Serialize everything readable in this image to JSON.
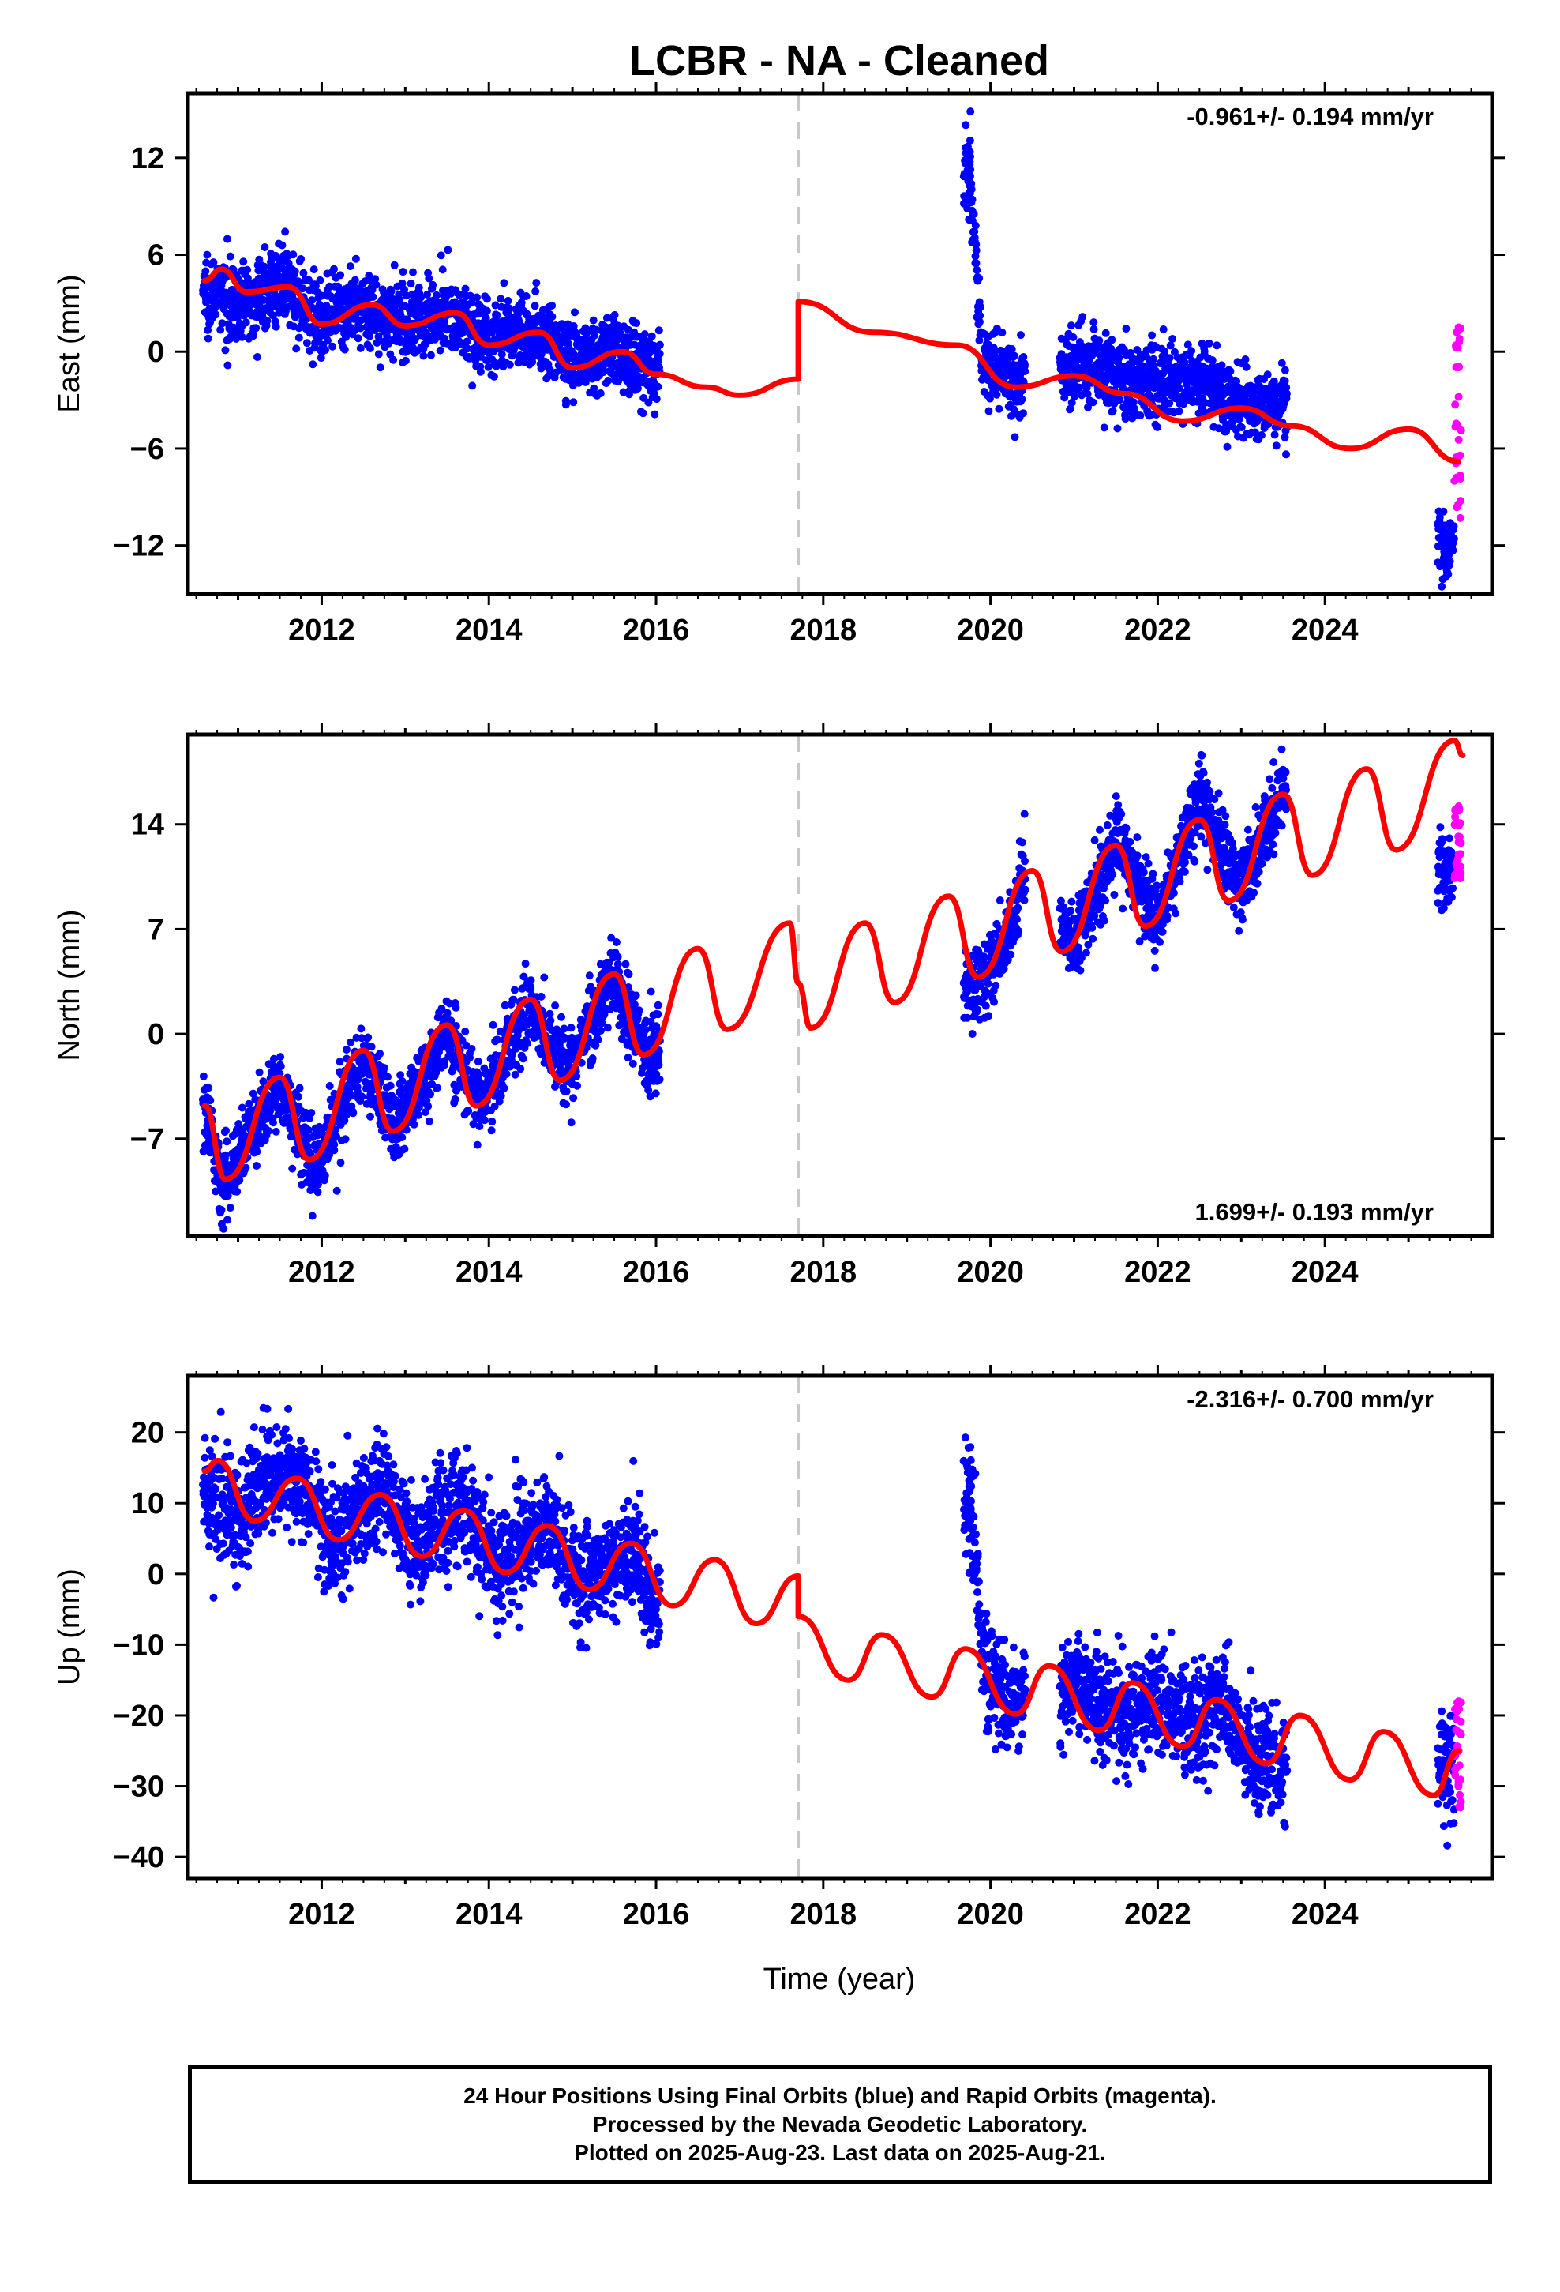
{
  "title": "LCBR  - NA - Cleaned",
  "xlabel": "Time (year)",
  "colors": {
    "final_orbits": "#0000ff",
    "rapid_orbits": "#ff00ff",
    "model_fit": "#ff0000",
    "equipment_change": "#c8c8c8"
  },
  "footer": {
    "line1": "24 Hour Positions Using Final Orbits (blue) and Rapid Orbits (magenta).",
    "line2": "Processed by the Nevada Geodetic Laboratory.",
    "line3": "Plotted on 2025-Aug-23. Last data on 2025-Aug-21."
  },
  "chart_data": [
    {
      "type": "scatter",
      "component": "east",
      "ylabel": "East (mm)",
      "rate_label": "-0.961+/- 0.194 mm/yr",
      "rate_label_position": "top-right",
      "xlim": [
        2010.4,
        2026.0
      ],
      "ylim": [
        -15,
        16
      ],
      "xticks": [
        2012,
        2014,
        2016,
        2018,
        2020,
        2022,
        2024
      ],
      "yticks": [
        -12,
        -6,
        0,
        6,
        12
      ],
      "step_year": 2017.7,
      "data_spans": [
        [
          2010.58,
          2016.05
        ],
        [
          2019.68,
          2020.42
        ],
        [
          2020.83,
          2023.55
        ],
        [
          2025.35,
          2025.55
        ]
      ],
      "rapid_span": [
        2025.55,
        2025.63
      ],
      "grid": false,
      "series": [
        {
          "type": "scatter",
          "color": "blue",
          "points": [
            [
              2010.6,
              3.8
            ],
            [
              2011.0,
              2.9
            ],
            [
              2011.5,
              4.3
            ],
            [
              2012.0,
              1.9
            ],
            [
              2012.5,
              2.8
            ],
            [
              2013.0,
              1.7
            ],
            [
              2013.5,
              2.7
            ],
            [
              2014.0,
              0.6
            ],
            [
              2014.5,
              1.4
            ],
            [
              2015.0,
              -0.4
            ],
            [
              2015.5,
              0.1
            ],
            [
              2016.0,
              -1.4
            ],
            [
              2019.75,
              11.5
            ],
            [
              2019.9,
              -0.6
            ],
            [
              2020.3,
              -1.9
            ],
            [
              2021.0,
              -0.7
            ],
            [
              2021.5,
              -1.4
            ],
            [
              2022.0,
              -2.0
            ],
            [
              2022.5,
              -1.8
            ],
            [
              2023.0,
              -3.4
            ],
            [
              2023.5,
              -3.4
            ],
            [
              2025.45,
              -12.2
            ]
          ]
        },
        {
          "type": "scatter",
          "color": "magenta",
          "points": [
            [
              2025.55,
              -8.0
            ],
            [
              2025.6,
              1.5
            ],
            [
              2025.6,
              -2.8
            ],
            [
              2025.62,
              -10.3
            ]
          ]
        },
        {
          "type": "line",
          "color": "red",
          "points": [
            [
              2010.6,
              4.4
            ],
            [
              2010.8,
              5.1
            ],
            [
              2011.1,
              3.7
            ],
            [
              2011.6,
              4.0
            ],
            [
              2012.0,
              1.7
            ],
            [
              2012.6,
              2.9
            ],
            [
              2013.0,
              1.6
            ],
            [
              2013.6,
              2.4
            ],
            [
              2014.0,
              0.4
            ],
            [
              2014.6,
              1.2
            ],
            [
              2015.0,
              -1.0
            ],
            [
              2015.6,
              0.0
            ],
            [
              2016.0,
              -1.4
            ],
            [
              2016.6,
              -2.2
            ],
            [
              2017.0,
              -2.7
            ],
            [
              2017.7,
              -1.7
            ],
            [
              2017.7,
              3.1
            ],
            [
              2018.6,
              1.2
            ],
            [
              2019.6,
              0.4
            ],
            [
              2020.3,
              -2.2
            ],
            [
              2021.0,
              -1.5
            ],
            [
              2021.6,
              -2.6
            ],
            [
              2022.3,
              -4.3
            ],
            [
              2023.0,
              -3.5
            ],
            [
              2023.6,
              -4.6
            ],
            [
              2024.3,
              -6.0
            ],
            [
              2025.0,
              -4.8
            ],
            [
              2025.6,
              -6.8
            ]
          ]
        }
      ]
    },
    {
      "type": "scatter",
      "component": "north",
      "ylabel": "North (mm)",
      "rate_label": "1.699+/- 0.193 mm/yr",
      "rate_label_position": "bottom-right",
      "xlim": [
        2010.4,
        2026.0
      ],
      "ylim": [
        -13.5,
        20
      ],
      "xticks": [
        2012,
        2014,
        2016,
        2018,
        2020,
        2022,
        2024
      ],
      "yticks": [
        -7,
        0,
        7,
        14
      ],
      "step_year": 2017.7,
      "data_spans": [
        [
          2010.58,
          2016.05
        ],
        [
          2019.68,
          2020.42
        ],
        [
          2020.83,
          2023.55
        ],
        [
          2025.35,
          2025.55
        ]
      ],
      "rapid_span": [
        2025.55,
        2025.63
      ],
      "grid": false,
      "series": [
        {
          "type": "scatter",
          "color": "blue",
          "points": [
            [
              2010.6,
              -4.5
            ],
            [
              2010.8,
              -9.8
            ],
            [
              2011.5,
              -3.3
            ],
            [
              2011.9,
              -9.0
            ],
            [
              2012.5,
              -1.6
            ],
            [
              2012.9,
              -6.2
            ],
            [
              2013.5,
              0.0
            ],
            [
              2013.9,
              -4.8
            ],
            [
              2014.5,
              2.2
            ],
            [
              2014.9,
              -2.7
            ],
            [
              2015.5,
              3.8
            ],
            [
              2015.9,
              -1.4
            ],
            [
              2019.8,
              3.2
            ],
            [
              2020.2,
              6.3
            ],
            [
              2020.4,
              10.5
            ],
            [
              2021.0,
              6.0
            ],
            [
              2021.5,
              12.8
            ],
            [
              2022.0,
              7.9
            ],
            [
              2022.5,
              15.8
            ],
            [
              2023.0,
              9.8
            ],
            [
              2023.5,
              16.1
            ],
            [
              2025.45,
              10.9
            ]
          ]
        },
        {
          "type": "scatter",
          "color": "magenta",
          "points": [
            [
              2025.6,
              15.2
            ],
            [
              2025.6,
              12.8
            ],
            [
              2025.62,
              10.4
            ]
          ]
        },
        {
          "type": "line",
          "color": "red",
          "points": [
            [
              2010.6,
              -4.8
            ],
            [
              2010.85,
              -9.7
            ],
            [
              2011.5,
              -2.9
            ],
            [
              2011.85,
              -8.4
            ],
            [
              2012.5,
              -1.1
            ],
            [
              2012.85,
              -6.5
            ],
            [
              2013.5,
              0.6
            ],
            [
              2013.85,
              -4.8
            ],
            [
              2014.5,
              2.3
            ],
            [
              2014.85,
              -3.1
            ],
            [
              2015.5,
              4.0
            ],
            [
              2015.85,
              -1.4
            ],
            [
              2016.5,
              5.7
            ],
            [
              2016.85,
              0.3
            ],
            [
              2017.6,
              7.4
            ],
            [
              2017.7,
              3.4
            ],
            [
              2017.85,
              0.4
            ],
            [
              2018.5,
              7.4
            ],
            [
              2018.85,
              2.1
            ],
            [
              2019.5,
              9.2
            ],
            [
              2019.85,
              3.8
            ],
            [
              2020.5,
              10.9
            ],
            [
              2020.85,
              5.5
            ],
            [
              2021.5,
              12.6
            ],
            [
              2021.85,
              7.2
            ],
            [
              2022.5,
              14.3
            ],
            [
              2022.85,
              8.9
            ],
            [
              2023.5,
              16.0
            ],
            [
              2023.85,
              10.6
            ],
            [
              2024.5,
              17.7
            ],
            [
              2024.85,
              12.3
            ],
            [
              2025.55,
              19.6
            ],
            [
              2025.65,
              18.6
            ]
          ]
        }
      ]
    },
    {
      "type": "scatter",
      "component": "up",
      "ylabel": "Up (mm)",
      "rate_label": "-2.316+/- 0.700 mm/yr",
      "rate_label_position": "top-right",
      "xlim": [
        2010.4,
        2026.0
      ],
      "ylim": [
        -43,
        28
      ],
      "xticks": [
        2012,
        2014,
        2016,
        2018,
        2020,
        2022,
        2024
      ],
      "yticks": [
        -40,
        -30,
        -20,
        -10,
        0,
        10,
        20
      ],
      "step_year": 2017.7,
      "data_spans": [
        [
          2010.58,
          2016.05
        ],
        [
          2019.68,
          2020.42
        ],
        [
          2020.83,
          2023.55
        ],
        [
          2025.35,
          2025.55
        ]
      ],
      "rapid_span": [
        2025.55,
        2025.63
      ],
      "grid": false,
      "series": [
        {
          "type": "scatter",
          "color": "blue",
          "points": [
            [
              2010.6,
              11.0
            ],
            [
              2011.0,
              8.5
            ],
            [
              2011.6,
              15.0
            ],
            [
              2012.1,
              5.0
            ],
            [
              2012.7,
              12.0
            ],
            [
              2013.1,
              4.0
            ],
            [
              2013.7,
              10.0
            ],
            [
              2014.1,
              1.0
            ],
            [
              2014.7,
              7.0
            ],
            [
              2015.1,
              -2.0
            ],
            [
              2015.7,
              4.0
            ],
            [
              2016.0,
              -5.0
            ],
            [
              2019.75,
              13.0
            ],
            [
              2019.9,
              -11.0
            ],
            [
              2020.2,
              -19.0
            ],
            [
              2021.0,
              -15.0
            ],
            [
              2021.5,
              -20.0
            ],
            [
              2022.0,
              -18.0
            ],
            [
              2022.5,
              -22.0
            ],
            [
              2022.7,
              -17.0
            ],
            [
              2023.2,
              -27.0
            ],
            [
              2025.45,
              -27.0
            ]
          ]
        },
        {
          "type": "scatter",
          "color": "magenta",
          "points": [
            [
              2025.6,
              -18.0
            ],
            [
              2025.6,
              -25.0
            ],
            [
              2025.62,
              -33.0
            ]
          ]
        },
        {
          "type": "line",
          "color": "red",
          "points": [
            [
              2010.6,
              14.5
            ],
            [
              2010.75,
              16.0
            ],
            [
              2011.2,
              7.5
            ],
            [
              2011.7,
              13.5
            ],
            [
              2012.2,
              4.8
            ],
            [
              2012.7,
              11.2
            ],
            [
              2013.2,
              2.5
            ],
            [
              2013.7,
              9.0
            ],
            [
              2014.2,
              0.2
            ],
            [
              2014.7,
              6.8
            ],
            [
              2015.2,
              -2.2
            ],
            [
              2015.7,
              4.3
            ],
            [
              2016.2,
              -4.5
            ],
            [
              2016.7,
              2.0
            ],
            [
              2017.2,
              -7.0
            ],
            [
              2017.7,
              -0.3
            ],
            [
              2017.7,
              -6.0
            ],
            [
              2018.3,
              -15.0
            ],
            [
              2018.7,
              -8.6
            ],
            [
              2019.3,
              -17.4
            ],
            [
              2019.7,
              -10.6
            ],
            [
              2020.3,
              -19.8
            ],
            [
              2020.7,
              -13.0
            ],
            [
              2021.3,
              -22.1
            ],
            [
              2021.7,
              -15.4
            ],
            [
              2022.3,
              -24.4
            ],
            [
              2022.7,
              -17.8
            ],
            [
              2023.3,
              -26.8
            ],
            [
              2023.7,
              -20.0
            ],
            [
              2024.3,
              -29.1
            ],
            [
              2024.7,
              -22.3
            ],
            [
              2025.3,
              -31.3
            ],
            [
              2025.6,
              -25.0
            ]
          ]
        }
      ]
    }
  ]
}
